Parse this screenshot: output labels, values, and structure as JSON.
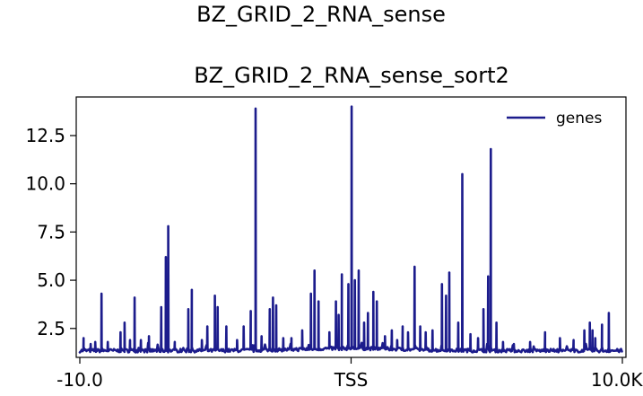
{
  "chart_data": {
    "type": "line",
    "suptitle": "BZ_GRID_2_RNA_sense",
    "title": "BZ_GRID_2_RNA_sense_sort2",
    "x_range": [
      -10000,
      10000
    ],
    "x_ticks": [
      {
        "value": -10000,
        "label": "-10.0"
      },
      {
        "value": 0,
        "label": "TSS"
      },
      {
        "value": 10000,
        "label": "10.0Kb"
      }
    ],
    "y_range": [
      1.0,
      14.5
    ],
    "y_ticks": [
      {
        "value": 2.5,
        "label": "2.5"
      },
      {
        "value": 5.0,
        "label": "5.0"
      },
      {
        "value": 7.5,
        "label": "7.5"
      },
      {
        "value": 10.0,
        "label": "10.0"
      },
      {
        "value": 12.5,
        "label": "12.5"
      }
    ],
    "grid": false,
    "legend_position": "top-right",
    "series": [
      {
        "name": "genes",
        "color": "#1c1c8c",
        "baseline": 1.35,
        "peaks": [
          [
            -9860,
            2.0
          ],
          [
            -9600,
            1.7
          ],
          [
            -9430,
            1.8
          ],
          [
            -9200,
            4.3
          ],
          [
            -8970,
            1.8
          ],
          [
            -8500,
            2.3
          ],
          [
            -8350,
            2.8
          ],
          [
            -8150,
            1.9
          ],
          [
            -7980,
            4.1
          ],
          [
            -7750,
            1.9
          ],
          [
            -7450,
            2.1
          ],
          [
            -7000,
            3.6
          ],
          [
            -6830,
            6.2
          ],
          [
            -6740,
            7.8
          ],
          [
            -6500,
            1.8
          ],
          [
            -6000,
            3.5
          ],
          [
            -5870,
            4.5
          ],
          [
            -5500,
            1.9
          ],
          [
            -5300,
            2.6
          ],
          [
            -5020,
            4.2
          ],
          [
            -4920,
            3.6
          ],
          [
            -4600,
            2.6
          ],
          [
            -4200,
            1.9
          ],
          [
            -3960,
            2.6
          ],
          [
            -3700,
            3.4
          ],
          [
            -3520,
            13.9
          ],
          [
            -3300,
            2.1
          ],
          [
            -3000,
            3.5
          ],
          [
            -2880,
            4.1
          ],
          [
            -2760,
            3.7
          ],
          [
            -2500,
            2.0
          ],
          [
            -2200,
            2.0
          ],
          [
            -1800,
            2.4
          ],
          [
            -1480,
            4.3
          ],
          [
            -1350,
            5.5
          ],
          [
            -1200,
            3.9
          ],
          [
            -800,
            2.3
          ],
          [
            -560,
            3.9
          ],
          [
            -460,
            3.2
          ],
          [
            -340,
            5.3
          ],
          [
            -100,
            4.8
          ],
          [
            20,
            14.0
          ],
          [
            140,
            5.0
          ],
          [
            280,
            5.5
          ],
          [
            480,
            2.8
          ],
          [
            620,
            3.3
          ],
          [
            820,
            4.4
          ],
          [
            950,
            3.9
          ],
          [
            1250,
            2.1
          ],
          [
            1500,
            2.4
          ],
          [
            1700,
            1.9
          ],
          [
            1900,
            2.6
          ],
          [
            2100,
            2.3
          ],
          [
            2340,
            5.7
          ],
          [
            2550,
            2.6
          ],
          [
            2750,
            2.3
          ],
          [
            3000,
            2.4
          ],
          [
            3350,
            4.8
          ],
          [
            3500,
            4.2
          ],
          [
            3620,
            5.4
          ],
          [
            3950,
            2.8
          ],
          [
            4100,
            10.5
          ],
          [
            4400,
            2.2
          ],
          [
            4680,
            2.0
          ],
          [
            4880,
            3.5
          ],
          [
            5050,
            5.2
          ],
          [
            5150,
            11.8
          ],
          [
            5360,
            2.8
          ],
          [
            5600,
            1.8
          ],
          [
            6000,
            1.7
          ],
          [
            6600,
            1.8
          ],
          [
            7150,
            2.3
          ],
          [
            7700,
            2.0
          ],
          [
            8200,
            1.9
          ],
          [
            8600,
            2.4
          ],
          [
            8800,
            2.8
          ],
          [
            8900,
            2.4
          ],
          [
            9000,
            2.0
          ],
          [
            9250,
            2.7
          ],
          [
            9500,
            3.3
          ]
        ]
      }
    ]
  }
}
